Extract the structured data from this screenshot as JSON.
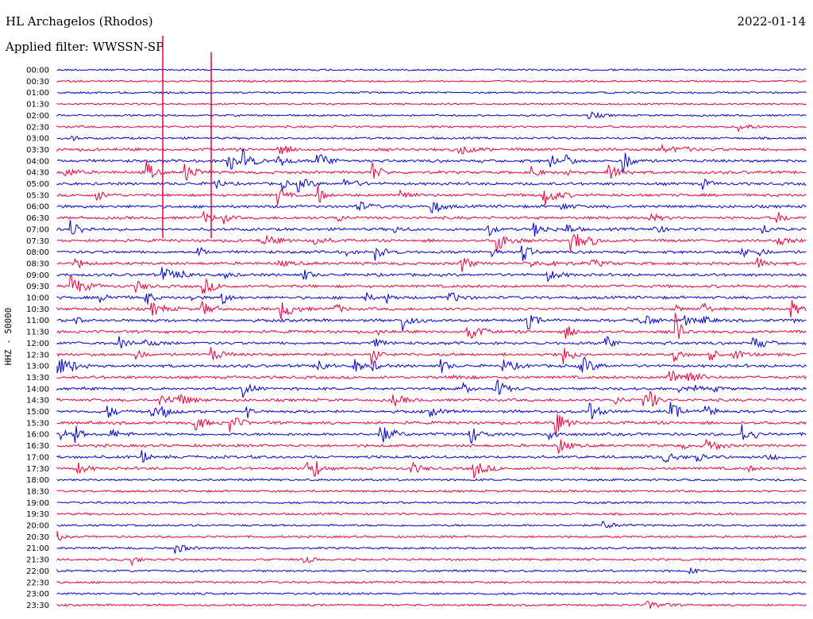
{
  "header": {
    "station": "HL Archagelos (Rhodos)",
    "filter": "Applied filter: WWSSN-SP",
    "date": "2022-01-14"
  },
  "chart_data": {
    "type": "line",
    "title": "HL Archagelos (Rhodos)",
    "subtitle": "Applied filter: WWSSN-SP",
    "date": "2022-01-14",
    "ylabel": "HHZ - 50000",
    "row_labels": [
      "00:00",
      "00:30",
      "01:00",
      "01:30",
      "02:00",
      "02:30",
      "03:00",
      "03:30",
      "04:00",
      "04:30",
      "05:00",
      "05:30",
      "06:00",
      "06:30",
      "07:00",
      "07:30",
      "08:00",
      "08:30",
      "09:00",
      "09:30",
      "10:00",
      "10:30",
      "11:00",
      "11:30",
      "12:00",
      "12:30",
      "13:00",
      "13:30",
      "14:00",
      "14:30",
      "15:00",
      "15:30",
      "16:00",
      "16:30",
      "17:00",
      "17:30",
      "18:00",
      "18:30",
      "19:00",
      "19:30",
      "20:00",
      "20:30",
      "21:00",
      "21:30",
      "22:00",
      "22:30",
      "23:00",
      "23:30"
    ],
    "colors": [
      "#0000d0",
      "#e8003c"
    ],
    "grid": false
  }
}
